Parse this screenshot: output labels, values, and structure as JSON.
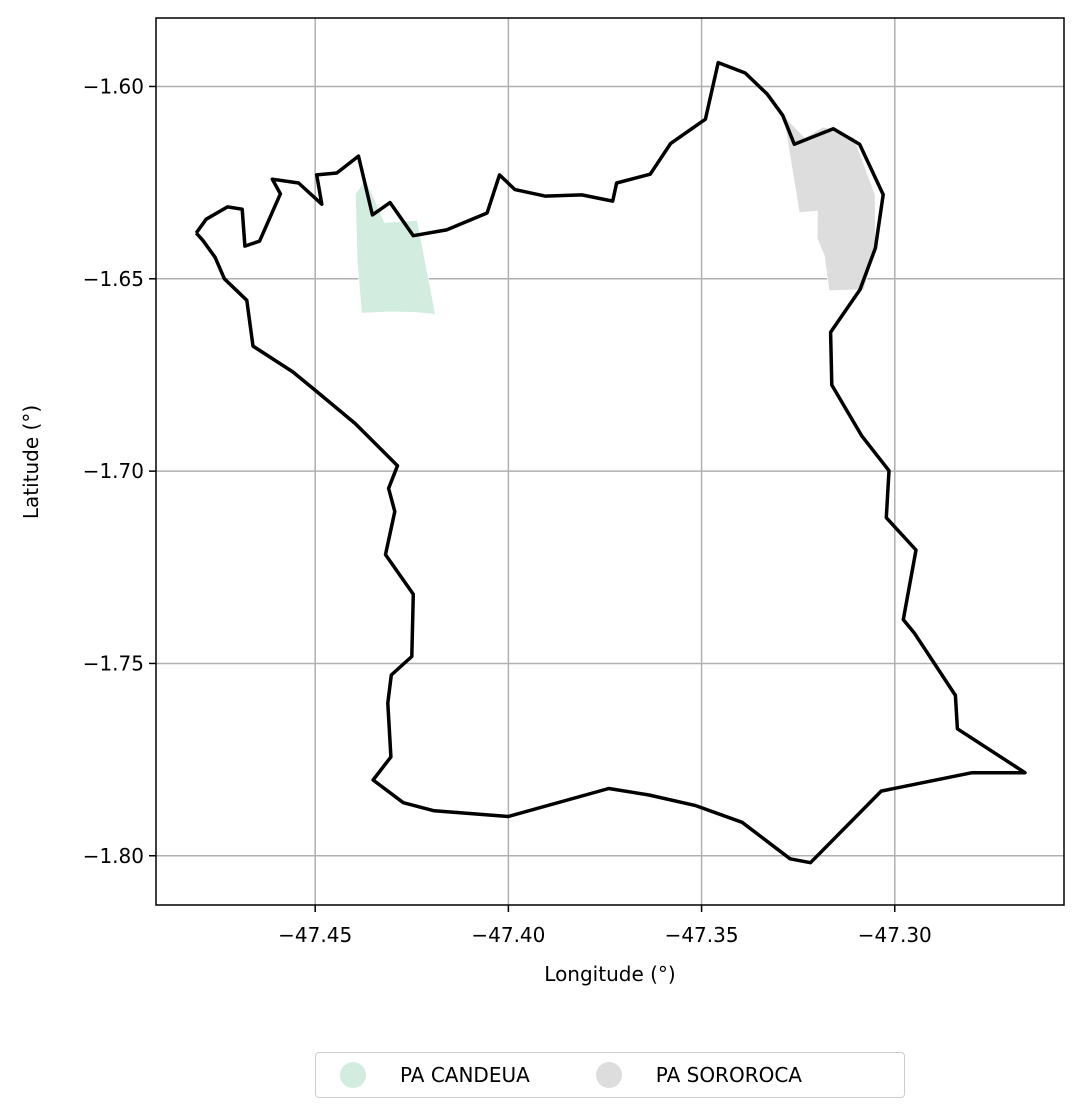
{
  "chart_data": {
    "type": "map",
    "xlabel": "Longitude (°)",
    "ylabel": "Latitude (°)",
    "xlim": [
      -47.4912,
      -47.2562
    ],
    "ylim": [
      -1.8128,
      -1.5822
    ],
    "xticks": [
      -47.45,
      -47.4,
      -47.35,
      -47.3
    ],
    "xtick_labels": [
      "−47.45",
      "−47.40",
      "−47.35",
      "−47.30"
    ],
    "yticks": [
      -1.6,
      -1.65,
      -1.7,
      -1.75,
      -1.8
    ],
    "ytick_labels": [
      "−1.60",
      "−1.65",
      "−1.70",
      "−1.75",
      "−1.80"
    ],
    "grid": true,
    "legend_position": "bottom-center",
    "outline_color": "#000000",
    "boundary": [
      [
        -47.4808,
        -1.6381
      ],
      [
        -47.4782,
        -1.6345
      ],
      [
        -47.4727,
        -1.6313
      ],
      [
        -47.4689,
        -1.6319
      ],
      [
        -47.4682,
        -1.6415
      ],
      [
        -47.4644,
        -1.6402
      ],
      [
        -47.459,
        -1.6279
      ],
      [
        -47.4611,
        -1.6241
      ],
      [
        -47.4543,
        -1.6251
      ],
      [
        -47.4483,
        -1.6306
      ],
      [
        -47.4496,
        -1.623
      ],
      [
        -47.4444,
        -1.6225
      ],
      [
        -47.4388,
        -1.6181
      ],
      [
        -47.4352,
        -1.6334
      ],
      [
        -47.4306,
        -1.6302
      ],
      [
        -47.4246,
        -1.6388
      ],
      [
        -47.416,
        -1.6373
      ],
      [
        -47.4055,
        -1.6329
      ],
      [
        -47.4023,
        -1.623
      ],
      [
        -47.3983,
        -1.6268
      ],
      [
        -47.3905,
        -1.6285
      ],
      [
        -47.381,
        -1.6282
      ],
      [
        -47.373,
        -1.6298
      ],
      [
        -47.372,
        -1.6251
      ],
      [
        -47.3633,
        -1.6228
      ],
      [
        -47.358,
        -1.6148
      ],
      [
        -47.349,
        -1.6085
      ],
      [
        -47.3457,
        -1.5938
      ],
      [
        -47.3387,
        -1.5965
      ],
      [
        -47.333,
        -1.602
      ],
      [
        -47.329,
        -1.6075
      ],
      [
        -47.326,
        -1.615
      ],
      [
        -47.3159,
        -1.611
      ],
      [
        -47.3091,
        -1.615
      ],
      [
        -47.303,
        -1.6281
      ],
      [
        -47.305,
        -1.642
      ],
      [
        -47.309,
        -1.6528
      ],
      [
        -47.3166,
        -1.6639
      ],
      [
        -47.3163,
        -1.6776
      ],
      [
        -47.3085,
        -1.6909
      ],
      [
        -47.3015,
        -1.6999
      ],
      [
        -47.3022,
        -1.7121
      ],
      [
        -47.2945,
        -1.7205
      ],
      [
        -47.2978,
        -1.7386
      ],
      [
        -47.295,
        -1.742
      ],
      [
        -47.2843,
        -1.7583
      ],
      [
        -47.2838,
        -1.767
      ],
      [
        -47.2663,
        -1.7784
      ],
      [
        -47.28,
        -1.7784
      ],
      [
        -47.3035,
        -1.7832
      ],
      [
        -47.3218,
        -1.8018
      ],
      [
        -47.3271,
        -1.8008
      ],
      [
        -47.3327,
        -1.7965
      ],
      [
        -47.3395,
        -1.7913
      ],
      [
        -47.3517,
        -1.7869
      ],
      [
        -47.3636,
        -1.7842
      ],
      [
        -47.374,
        -1.7825
      ],
      [
        -47.4,
        -1.7898
      ],
      [
        -47.4192,
        -1.7883
      ],
      [
        -47.4272,
        -1.7862
      ],
      [
        -47.435,
        -1.7803
      ],
      [
        -47.4304,
        -1.7743
      ],
      [
        -47.4312,
        -1.7603
      ],
      [
        -47.4303,
        -1.753
      ],
      [
        -47.425,
        -1.7482
      ],
      [
        -47.4246,
        -1.732
      ],
      [
        -47.4318,
        -1.7217
      ],
      [
        -47.4294,
        -1.7105
      ],
      [
        -47.431,
        -1.7045
      ],
      [
        -47.4287,
        -1.6986
      ],
      [
        -47.4397,
        -1.6876
      ],
      [
        -47.4496,
        -1.6793
      ],
      [
        -47.4558,
        -1.6742
      ],
      [
        -47.4661,
        -1.6675
      ],
      [
        -47.4677,
        -1.6556
      ],
      [
        -47.4735,
        -1.65
      ],
      [
        -47.4759,
        -1.6444
      ],
      [
        -47.4791,
        -1.64
      ],
      [
        -47.4808,
        -1.6381
      ]
    ],
    "regions": [
      {
        "name": "PA CANDEUA",
        "color": "#d2ece0",
        "polygon": [
          [
            -47.4396,
            -1.6279
          ],
          [
            -47.4369,
            -1.6242
          ],
          [
            -47.432,
            -1.6354
          ],
          [
            -47.4236,
            -1.6348
          ],
          [
            -47.4189,
            -1.6592
          ],
          [
            -47.4242,
            -1.6587
          ],
          [
            -47.431,
            -1.6586
          ],
          [
            -47.438,
            -1.6589
          ],
          [
            -47.4391,
            -1.6455
          ]
        ]
      },
      {
        "name": "PA SOROROCA",
        "color": "#dddddd",
        "polygon": [
          [
            -47.3288,
            -1.6076
          ],
          [
            -47.3233,
            -1.6133
          ],
          [
            -47.3185,
            -1.6105
          ],
          [
            -47.3106,
            -1.6132
          ],
          [
            -47.3051,
            -1.6282
          ],
          [
            -47.305,
            -1.642
          ],
          [
            -47.308,
            -1.6528
          ],
          [
            -47.317,
            -1.6531
          ],
          [
            -47.3182,
            -1.644
          ],
          [
            -47.3201,
            -1.6395
          ],
          [
            -47.32,
            -1.6324
          ],
          [
            -47.3247,
            -1.6328
          ]
        ]
      }
    ]
  },
  "legend": {
    "items": [
      {
        "label": "PA CANDEUA",
        "color": "#d2ece0"
      },
      {
        "label": "PA SOROROCA",
        "color": "#dddddd"
      }
    ]
  }
}
